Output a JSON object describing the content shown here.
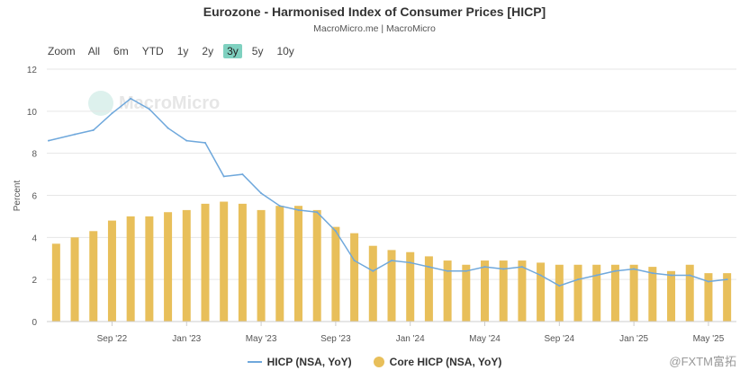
{
  "header": {
    "title": "Eurozone - Harmonised Index of Consumer Prices [HICP]",
    "subtitle": "MacroMicro.me | MacroMicro"
  },
  "zoom": {
    "label": "Zoom",
    "options": [
      "All",
      "6m",
      "YTD",
      "1y",
      "2y",
      "3y",
      "5y",
      "10y"
    ],
    "active": "3y"
  },
  "watermark": {
    "text": "MacroMicro"
  },
  "corner_mark": "@FXTM富拓",
  "colors": {
    "line": "#6fa8dc",
    "bar": "#e8bf5a",
    "zoom_active": "#7fd1c0"
  },
  "chart_data": {
    "type": "bar",
    "ylabel": "Percent",
    "ylim": [
      0,
      12
    ],
    "yticks": [
      0,
      2,
      4,
      6,
      8,
      10,
      12
    ],
    "grid": true,
    "legend_position": "bottom",
    "x": [
      "Jun '22",
      "Jul '22",
      "Aug '22",
      "Sep '22",
      "Oct '22",
      "Nov '22",
      "Dec '22",
      "Jan '23",
      "Feb '23",
      "Mar '23",
      "Apr '23",
      "May '23",
      "Jun '23",
      "Jul '23",
      "Aug '23",
      "Sep '23",
      "Oct '23",
      "Nov '23",
      "Dec '23",
      "Jan '24",
      "Feb '24",
      "Mar '24",
      "Apr '24",
      "May '24",
      "Jun '24",
      "Jul '24",
      "Aug '24",
      "Sep '24",
      "Oct '24",
      "Nov '24",
      "Dec '24",
      "Jan '25",
      "Feb '25",
      "Mar '25",
      "Apr '25",
      "May '25",
      "Jun '25"
    ],
    "xtick_labels": [
      {
        "label": "Sep '22",
        "index": 3
      },
      {
        "label": "Jan '23",
        "index": 7
      },
      {
        "label": "May '23",
        "index": 11
      },
      {
        "label": "Sep '23",
        "index": 15
      },
      {
        "label": "Jan '24",
        "index": 19
      },
      {
        "label": "May '24",
        "index": 23
      },
      {
        "label": "Sep '24",
        "index": 27
      },
      {
        "label": "Jan '25",
        "index": 31
      },
      {
        "label": "May '25",
        "index": 35
      }
    ],
    "series": [
      {
        "name": "HICP (NSA, YoY)",
        "type": "line",
        "values": [
          8.6,
          8.9,
          9.1,
          9.9,
          10.6,
          10.1,
          9.2,
          8.6,
          8.5,
          6.9,
          7.0,
          6.1,
          5.5,
          5.3,
          5.2,
          4.3,
          2.9,
          2.4,
          2.9,
          2.8,
          2.6,
          2.4,
          2.4,
          2.6,
          2.5,
          2.6,
          2.2,
          1.7,
          2.0,
          2.2,
          2.4,
          2.5,
          2.3,
          2.2,
          2.2,
          1.9,
          2.0
        ]
      },
      {
        "name": "Core HICP (NSA, YoY)",
        "type": "bar",
        "values": [
          3.7,
          4.0,
          4.3,
          4.8,
          5.0,
          5.0,
          5.2,
          5.3,
          5.6,
          5.7,
          5.6,
          5.3,
          5.5,
          5.5,
          5.3,
          4.5,
          4.2,
          3.6,
          3.4,
          3.3,
          3.1,
          2.9,
          2.7,
          2.9,
          2.9,
          2.9,
          2.8,
          2.7,
          2.7,
          2.7,
          2.7,
          2.7,
          2.6,
          2.4,
          2.7,
          2.3,
          2.3
        ]
      }
    ]
  }
}
